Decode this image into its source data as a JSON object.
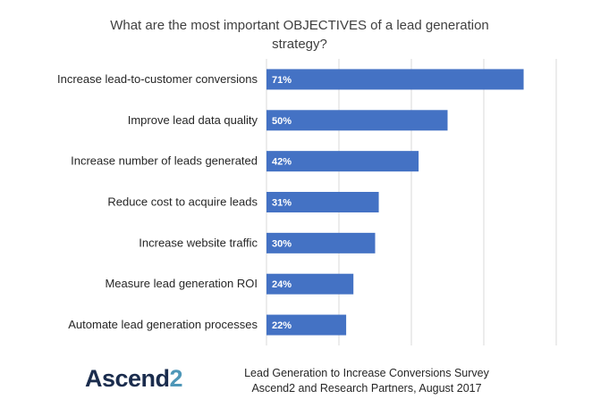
{
  "chart_data": {
    "type": "bar",
    "orientation": "horizontal",
    "title": "What are the most important OBJECTIVES of a lead generation strategy?",
    "categories": [
      "Increase lead-to-customer conversions",
      "Improve lead data quality",
      "Increase number of leads generated",
      "Reduce cost to acquire leads",
      "Increase website traffic",
      "Measure lead generation ROI",
      "Automate lead generation processes"
    ],
    "values": [
      71,
      50,
      42,
      31,
      30,
      24,
      22
    ],
    "value_labels": [
      "71%",
      "50%",
      "42%",
      "31%",
      "30%",
      "24%",
      "22%"
    ],
    "xlim": [
      0,
      80
    ],
    "grid": "vertical",
    "bar_color": "#4472c4",
    "grid_color": "#d9d9d9"
  },
  "footer": {
    "brand_main": "Ascend",
    "brand_accent": "2",
    "source_line1": "Lead Generation to Increase Conversions Survey",
    "source_line2": "Ascend2 and Research Partners, August 2017"
  }
}
